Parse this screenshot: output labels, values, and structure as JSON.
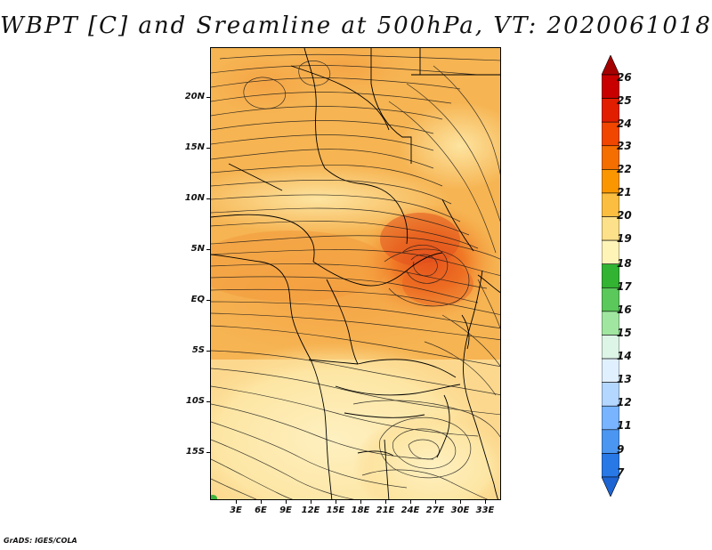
{
  "title": "WBPT [C] and Sreamline at 500hPa, VT: 2020061018",
  "footer": "GrADS: IGES/COLA",
  "map": {
    "lat_labels": [
      "20N",
      "15N",
      "10N",
      "5N",
      "EQ",
      "5S",
      "10S",
      "15S"
    ],
    "lon_labels": [
      "3E",
      "6E",
      "9E",
      "12E",
      "15E",
      "18E",
      "21E",
      "24E",
      "27E",
      "30E",
      "33E"
    ]
  },
  "colorbar": {
    "labels": [
      "26",
      "25",
      "24",
      "23",
      "22",
      "21",
      "20",
      "19",
      "18",
      "17",
      "16",
      "15",
      "14",
      "13",
      "12",
      "11",
      "9",
      "7"
    ],
    "colors": [
      "#a50000",
      "#c80000",
      "#e11e00",
      "#f04600",
      "#f56e00",
      "#fa9600",
      "#fcbe40",
      "#fde08a",
      "#fff4b8",
      "#32b432",
      "#5ac85a",
      "#a0e6a0",
      "#dcf5e6",
      "#e1f0ff",
      "#b4d7ff",
      "#78b4ff",
      "#4b96f0",
      "#2878e6",
      "#1e64d2"
    ]
  }
}
